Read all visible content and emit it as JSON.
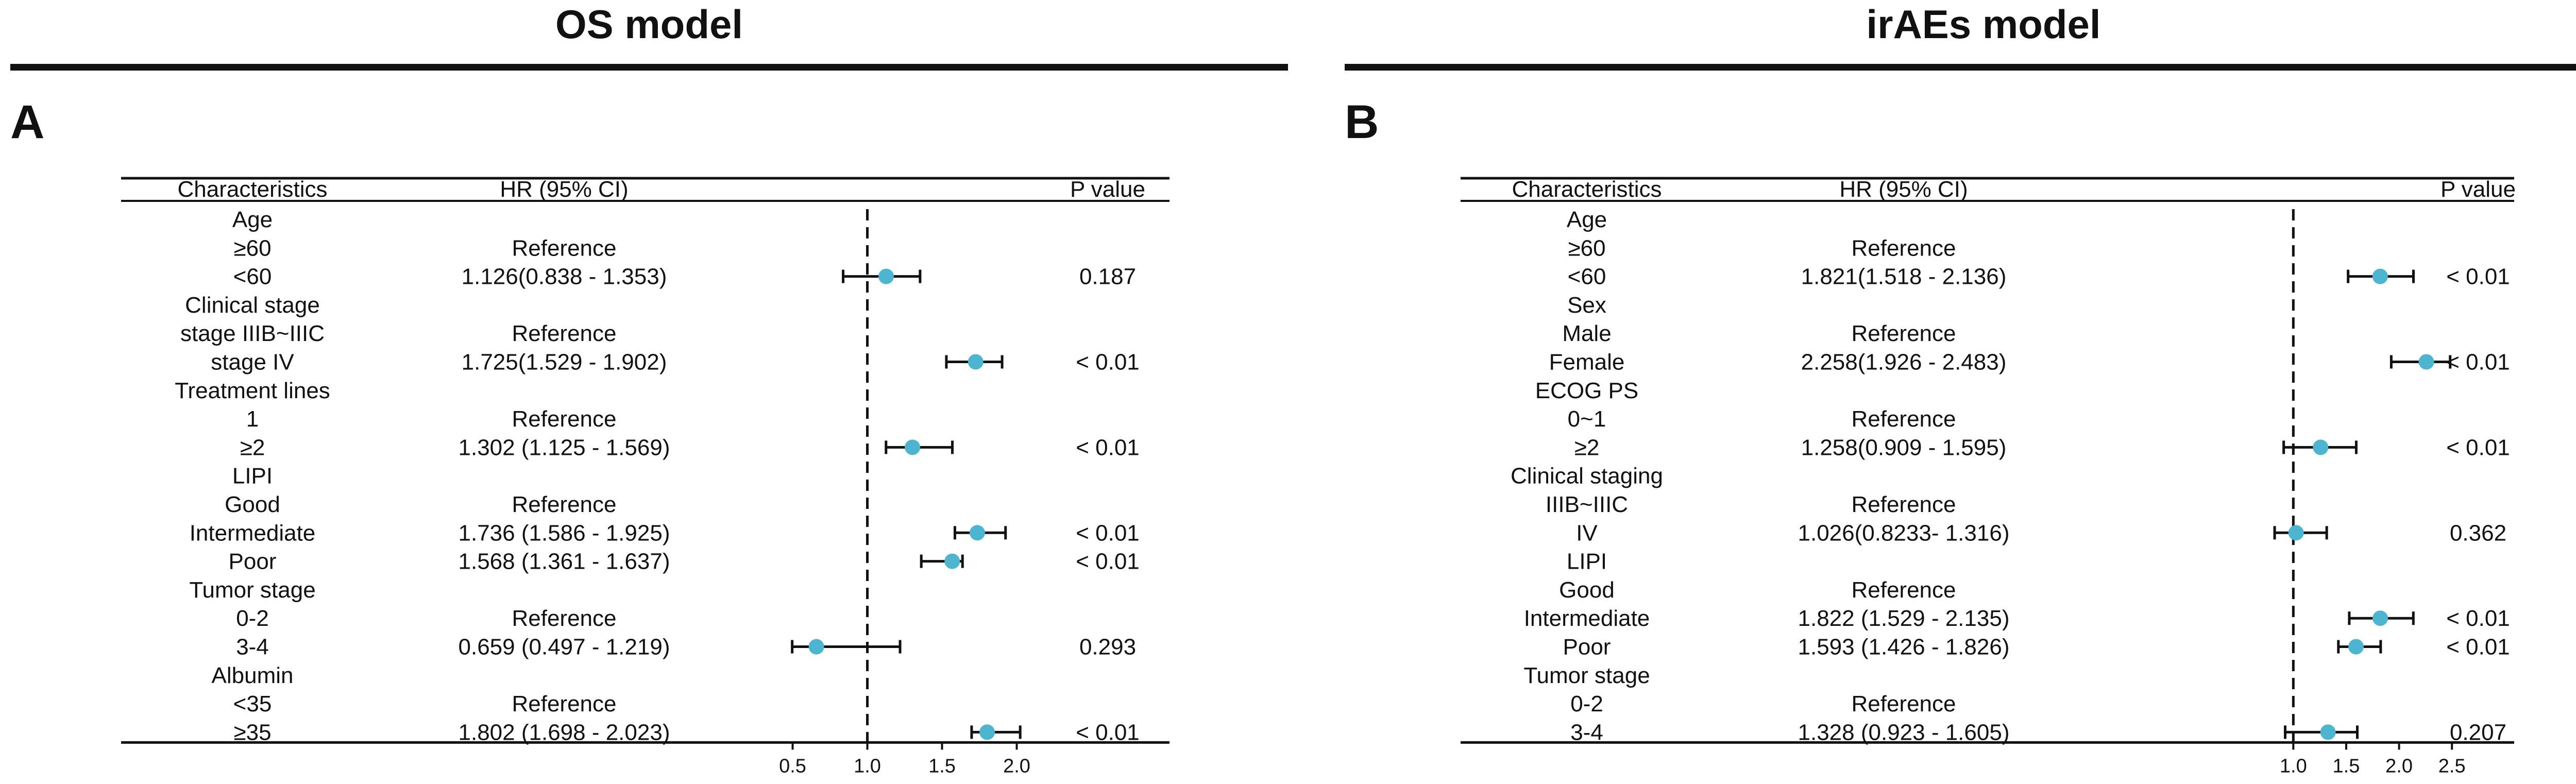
{
  "chart_data": [
    {
      "type": "forest",
      "title": "OS model",
      "panel_label": "A",
      "columns": {
        "characteristics": "Characteristics",
        "hr": "HR (95% CI)",
        "p": "P value"
      },
      "reference_line": 1.0,
      "x_ticks": [
        "0.5",
        "1.0",
        "1.5",
        "2.0"
      ],
      "x_tick_values": [
        0.5,
        1.0,
        1.5,
        2.0
      ],
      "xlim": [
        0.35,
        2.35
      ],
      "rows": [
        {
          "label": "Age",
          "hr_text": "",
          "p": ""
        },
        {
          "label": "≥60",
          "hr_text": "Reference",
          "p": ""
        },
        {
          "label": "<60",
          "hr_text": "1.126(0.838 - 1.353)",
          "p": "0.187",
          "est": 1.126,
          "lo": 0.838,
          "hi": 1.353
        },
        {
          "label": "Clinical stage",
          "hr_text": "",
          "p": ""
        },
        {
          "label": "stage IIIB~IIIC",
          "hr_text": "Reference",
          "p": ""
        },
        {
          "label": "stage IV",
          "hr_text": "1.725(1.529 - 1.902)",
          "p": "< 0.01",
          "est": 1.725,
          "lo": 1.529,
          "hi": 1.902
        },
        {
          "label": "Treatment lines",
          "hr_text": "",
          "p": ""
        },
        {
          "label": "1",
          "hr_text": "Reference",
          "p": ""
        },
        {
          "label": "≥2",
          "hr_text": "1.302 (1.125 - 1.569)",
          "p": "< 0.01",
          "est": 1.302,
          "lo": 1.125,
          "hi": 1.569
        },
        {
          "label": "LIPI",
          "hr_text": "",
          "p": ""
        },
        {
          "label": "Good",
          "hr_text": "Reference",
          "p": ""
        },
        {
          "label": "Intermediate",
          "hr_text": "1.736 (1.586 - 1.925)",
          "p": "< 0.01",
          "est": 1.736,
          "lo": 1.586,
          "hi": 1.925
        },
        {
          "label": "Poor",
          "hr_text": "1.568 (1.361 - 1.637)",
          "p": "< 0.01",
          "est": 1.568,
          "lo": 1.361,
          "hi": 1.637
        },
        {
          "label": "Tumor stage",
          "hr_text": "",
          "p": ""
        },
        {
          "label": "0-2",
          "hr_text": "Reference",
          "p": ""
        },
        {
          "label": "3-4",
          "hr_text": "0.659 (0.497 - 1.219)",
          "p": "0.293",
          "est": 0.659,
          "lo": 0.497,
          "hi": 1.219
        },
        {
          "label": "Albumin",
          "hr_text": "",
          "p": ""
        },
        {
          "label": "<35",
          "hr_text": "Reference",
          "p": ""
        },
        {
          "label": "≥35",
          "hr_text": "1.802 (1.698 - 2.023)",
          "p": "< 0.01",
          "est": 1.802,
          "lo": 1.698,
          "hi": 2.023
        }
      ]
    },
    {
      "type": "forest",
      "title": "irAEs model",
      "panel_label": "B",
      "columns": {
        "characteristics": "Characteristics",
        "hr": "HR (95% CI)",
        "p": "P value"
      },
      "reference_line": 1.0,
      "x_ticks": [
        "1.0",
        "1.5",
        "2.0",
        "2.5"
      ],
      "x_tick_values": [
        1.0,
        1.5,
        2.0,
        2.5
      ],
      "xlim": [
        0.75,
        2.65
      ],
      "rows": [
        {
          "label": "Age",
          "hr_text": "",
          "p": ""
        },
        {
          "label": "≥60",
          "hr_text": "Reference",
          "p": ""
        },
        {
          "label": "<60",
          "hr_text": "1.821(1.518 - 2.136)",
          "p": "< 0.01",
          "est": 1.821,
          "lo": 1.518,
          "hi": 2.136
        },
        {
          "label": "Sex",
          "hr_text": "",
          "p": ""
        },
        {
          "label": "Male",
          "hr_text": "Reference",
          "p": ""
        },
        {
          "label": "Female",
          "hr_text": "2.258(1.926 - 2.483)",
          "p": "< 0.01",
          "est": 2.258,
          "lo": 1.926,
          "hi": 2.483
        },
        {
          "label": "ECOG PS",
          "hr_text": "",
          "p": ""
        },
        {
          "label": "0~1",
          "hr_text": "Reference",
          "p": ""
        },
        {
          "label": "≥2",
          "hr_text": "1.258(0.909 - 1.595)",
          "p": "< 0.01",
          "est": 1.258,
          "lo": 0.909,
          "hi": 1.595
        },
        {
          "label": "Clinical staging",
          "hr_text": "",
          "p": ""
        },
        {
          "label": "IIIB~IIIC",
          "hr_text": "Reference",
          "p": ""
        },
        {
          "label": "IV",
          "hr_text": "1.026(0.8233- 1.316)",
          "p": "0.362",
          "est": 1.026,
          "lo": 0.8233,
          "hi": 1.316
        },
        {
          "label": "LIPI",
          "hr_text": "",
          "p": ""
        },
        {
          "label": "Good",
          "hr_text": "Reference",
          "p": ""
        },
        {
          "label": "Intermediate",
          "hr_text": "1.822 (1.529 - 2.135)",
          "p": "< 0.01",
          "est": 1.822,
          "lo": 1.529,
          "hi": 2.135
        },
        {
          "label": "Poor",
          "hr_text": "1.593 (1.426 - 1.826)",
          "p": "< 0.01",
          "est": 1.593,
          "lo": 1.426,
          "hi": 1.826
        },
        {
          "label": "Tumor stage",
          "hr_text": "",
          "p": ""
        },
        {
          "label": "0-2",
          "hr_text": "Reference",
          "p": ""
        },
        {
          "label": "3-4",
          "hr_text": "1.328 (0.923 - 1.605)",
          "p": "0.207",
          "est": 1.328,
          "lo": 0.923,
          "hi": 1.605
        }
      ]
    }
  ],
  "colors": {
    "point": "#4eb5d1",
    "line": "#111111"
  }
}
